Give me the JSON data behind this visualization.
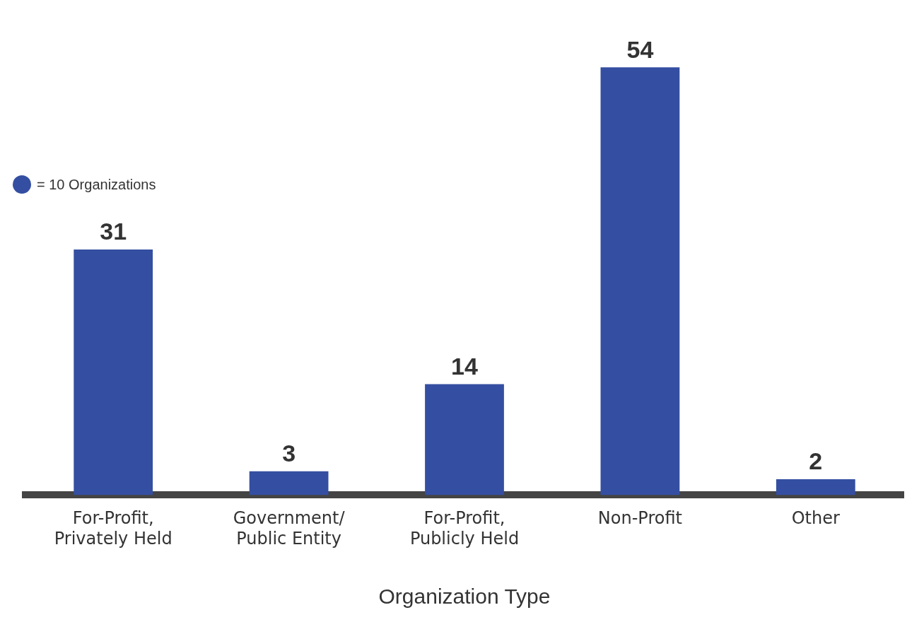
{
  "chart_data": {
    "type": "bar",
    "xlabel": "Organization Type",
    "categories": [
      "For-Profit, Privately Held",
      "Government/ Public Entity",
      "For-Profit, Publicly Held",
      "Non-Profit",
      "Other"
    ],
    "values": [
      31,
      3,
      14,
      54,
      2
    ],
    "color": "#344fa1",
    "tick_labels": "x",
    "grid": false,
    "legend": false,
    "data_labels": true,
    "annotations": [
      "= 10 Organizations"
    ]
  }
}
